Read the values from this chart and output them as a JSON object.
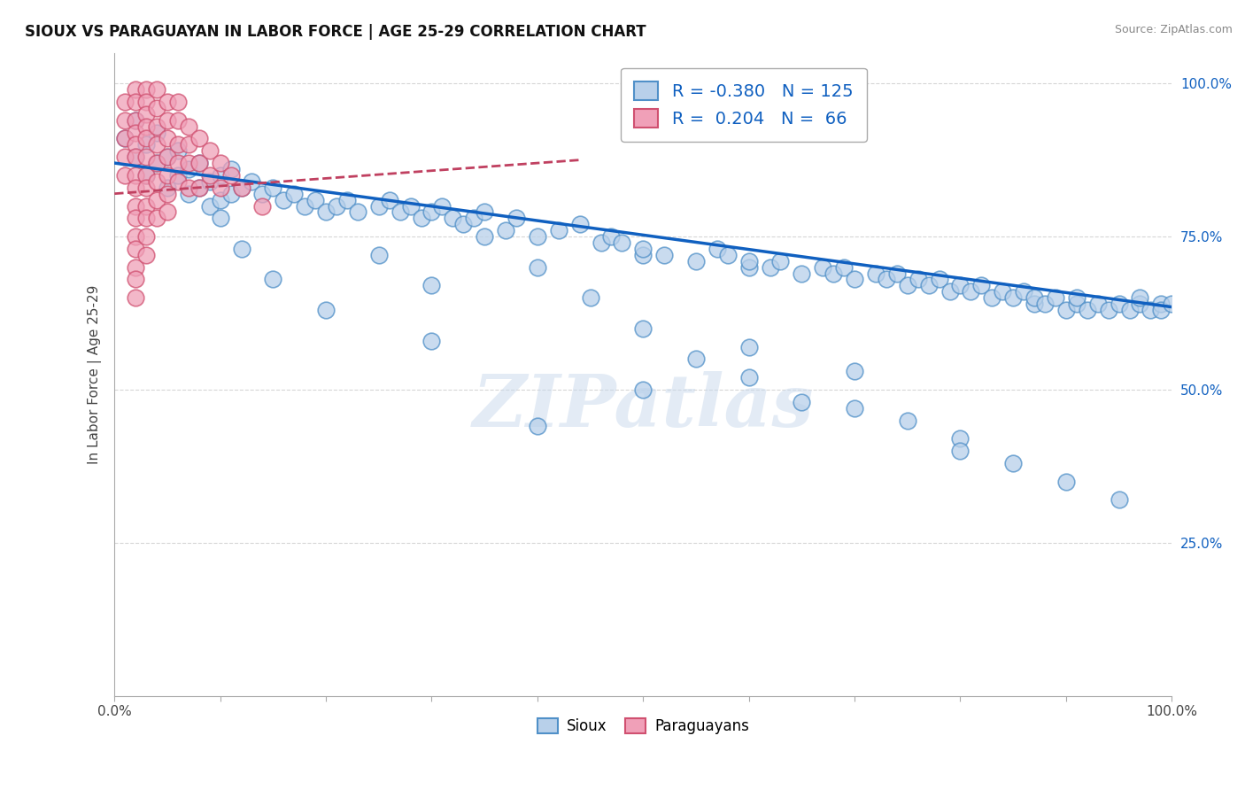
{
  "title": "SIOUX VS PARAGUAYAN IN LABOR FORCE | AGE 25-29 CORRELATION CHART",
  "source_text": "Source: ZipAtlas.com",
  "ylabel": "In Labor Force | Age 25-29",
  "xlim": [
    0.0,
    1.0
  ],
  "ylim": [
    0.0,
    1.05
  ],
  "xtick_positions": [
    0.0,
    0.1,
    0.2,
    0.3,
    0.4,
    0.5,
    0.6,
    0.7,
    0.8,
    0.9,
    1.0
  ],
  "xtick_labels_show": [
    "0.0%",
    "",
    "",
    "",
    "",
    "",
    "",
    "",
    "",
    "",
    "100.0%"
  ],
  "ytick_positions": [
    0.25,
    0.5,
    0.75,
    1.0
  ],
  "ytick_labels": [
    "25.0%",
    "50.0%",
    "75.0%",
    "100.0%"
  ],
  "blue_R": -0.38,
  "blue_N": 125,
  "pink_R": 0.204,
  "pink_N": 66,
  "blue_color": "#b8d0ea",
  "pink_color": "#f0a0b8",
  "blue_edge_color": "#5090c8",
  "pink_edge_color": "#d05070",
  "blue_line_color": "#1060c0",
  "pink_line_color": "#c04060",
  "legend_blue_label": "Sioux",
  "legend_pink_label": "Paraguayans",
  "watermark": "ZIPatlas",
  "blue_line_x0": 0.0,
  "blue_line_y0": 0.87,
  "blue_line_x1": 1.0,
  "blue_line_y1": 0.635,
  "pink_line_x0": 0.0,
  "pink_line_y0": 0.82,
  "pink_line_x1": 0.44,
  "pink_line_y1": 0.875,
  "blue_scatter_x": [
    0.01,
    0.02,
    0.02,
    0.03,
    0.03,
    0.04,
    0.04,
    0.05,
    0.05,
    0.06,
    0.06,
    0.07,
    0.07,
    0.08,
    0.08,
    0.09,
    0.09,
    0.1,
    0.1,
    0.11,
    0.11,
    0.12,
    0.13,
    0.14,
    0.15,
    0.16,
    0.17,
    0.18,
    0.19,
    0.2,
    0.21,
    0.22,
    0.23,
    0.25,
    0.26,
    0.27,
    0.28,
    0.29,
    0.3,
    0.31,
    0.32,
    0.33,
    0.34,
    0.35,
    0.37,
    0.38,
    0.4,
    0.42,
    0.44,
    0.46,
    0.47,
    0.48,
    0.5,
    0.5,
    0.52,
    0.55,
    0.57,
    0.58,
    0.6,
    0.6,
    0.62,
    0.63,
    0.65,
    0.67,
    0.68,
    0.69,
    0.7,
    0.72,
    0.73,
    0.74,
    0.75,
    0.76,
    0.77,
    0.78,
    0.79,
    0.8,
    0.81,
    0.82,
    0.83,
    0.84,
    0.85,
    0.86,
    0.87,
    0.87,
    0.88,
    0.89,
    0.9,
    0.91,
    0.91,
    0.92,
    0.93,
    0.94,
    0.95,
    0.96,
    0.97,
    0.97,
    0.98,
    0.99,
    0.99,
    1.0,
    0.1,
    0.12,
    0.15,
    0.2,
    0.25,
    0.3,
    0.35,
    0.4,
    0.45,
    0.5,
    0.55,
    0.6,
    0.65,
    0.7,
    0.75,
    0.8,
    0.85,
    0.9,
    0.95,
    0.3,
    0.4,
    0.5,
    0.6,
    0.7,
    0.8
  ],
  "blue_scatter_y": [
    0.91,
    0.94,
    0.88,
    0.9,
    0.85,
    0.92,
    0.87,
    0.88,
    0.83,
    0.89,
    0.85,
    0.86,
    0.82,
    0.87,
    0.83,
    0.84,
    0.8,
    0.85,
    0.81,
    0.86,
    0.82,
    0.83,
    0.84,
    0.82,
    0.83,
    0.81,
    0.82,
    0.8,
    0.81,
    0.79,
    0.8,
    0.81,
    0.79,
    0.8,
    0.81,
    0.79,
    0.8,
    0.78,
    0.79,
    0.8,
    0.78,
    0.77,
    0.78,
    0.79,
    0.76,
    0.78,
    0.75,
    0.76,
    0.77,
    0.74,
    0.75,
    0.74,
    0.72,
    0.73,
    0.72,
    0.71,
    0.73,
    0.72,
    0.7,
    0.71,
    0.7,
    0.71,
    0.69,
    0.7,
    0.69,
    0.7,
    0.68,
    0.69,
    0.68,
    0.69,
    0.67,
    0.68,
    0.67,
    0.68,
    0.66,
    0.67,
    0.66,
    0.67,
    0.65,
    0.66,
    0.65,
    0.66,
    0.64,
    0.65,
    0.64,
    0.65,
    0.63,
    0.64,
    0.65,
    0.63,
    0.64,
    0.63,
    0.64,
    0.63,
    0.64,
    0.65,
    0.63,
    0.64,
    0.63,
    0.64,
    0.78,
    0.73,
    0.68,
    0.63,
    0.72,
    0.67,
    0.75,
    0.7,
    0.65,
    0.6,
    0.55,
    0.52,
    0.48,
    0.53,
    0.45,
    0.42,
    0.38,
    0.35,
    0.32,
    0.58,
    0.44,
    0.5,
    0.57,
    0.47,
    0.4
  ],
  "pink_scatter_x": [
    0.01,
    0.01,
    0.01,
    0.01,
    0.01,
    0.02,
    0.02,
    0.02,
    0.02,
    0.02,
    0.02,
    0.02,
    0.02,
    0.02,
    0.02,
    0.02,
    0.02,
    0.02,
    0.02,
    0.02,
    0.03,
    0.03,
    0.03,
    0.03,
    0.03,
    0.03,
    0.03,
    0.03,
    0.03,
    0.03,
    0.03,
    0.03,
    0.04,
    0.04,
    0.04,
    0.04,
    0.04,
    0.04,
    0.04,
    0.04,
    0.05,
    0.05,
    0.05,
    0.05,
    0.05,
    0.05,
    0.05,
    0.06,
    0.06,
    0.06,
    0.06,
    0.06,
    0.07,
    0.07,
    0.07,
    0.07,
    0.08,
    0.08,
    0.08,
    0.09,
    0.09,
    0.1,
    0.1,
    0.11,
    0.12,
    0.14
  ],
  "pink_scatter_y": [
    0.97,
    0.94,
    0.91,
    0.88,
    0.85,
    0.99,
    0.97,
    0.94,
    0.92,
    0.9,
    0.88,
    0.85,
    0.83,
    0.8,
    0.78,
    0.75,
    0.73,
    0.7,
    0.68,
    0.65,
    0.99,
    0.97,
    0.95,
    0.93,
    0.91,
    0.88,
    0.85,
    0.83,
    0.8,
    0.78,
    0.75,
    0.72,
    0.99,
    0.96,
    0.93,
    0.9,
    0.87,
    0.84,
    0.81,
    0.78,
    0.97,
    0.94,
    0.91,
    0.88,
    0.85,
    0.82,
    0.79,
    0.97,
    0.94,
    0.9,
    0.87,
    0.84,
    0.93,
    0.9,
    0.87,
    0.83,
    0.91,
    0.87,
    0.83,
    0.89,
    0.85,
    0.87,
    0.83,
    0.85,
    0.83,
    0.8
  ]
}
